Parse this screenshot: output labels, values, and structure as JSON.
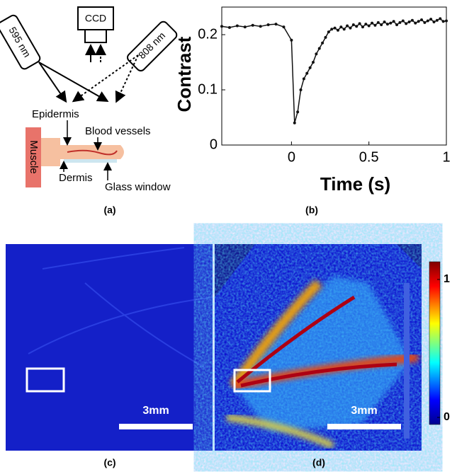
{
  "diagram": {
    "source_left": "595 nm",
    "camera": "CCD",
    "source_right": "808 nm",
    "epidermis": "Epidermis",
    "vessels": "Blood vessels",
    "muscle": "Muscle",
    "dermis": "Dermis",
    "window": "Glass window",
    "label": "(a)"
  },
  "chart_data": {
    "type": "line",
    "label": "(b)",
    "xlabel": "Time (s)",
    "ylabel": "Contrast",
    "xlim": [
      -0.45,
      1
    ],
    "xticks": [
      0,
      0.5,
      1
    ],
    "ylim": [
      0,
      0.25
    ],
    "yticks": [
      0,
      0.1,
      0.2
    ],
    "color": "#111111",
    "x": [
      -0.45,
      -0.4,
      -0.35,
      -0.3,
      -0.25,
      -0.2,
      -0.15,
      -0.1,
      -0.05,
      0,
      0.02,
      0.04,
      0.06,
      0.08,
      0.1,
      0.12,
      0.14,
      0.16,
      0.18,
      0.2,
      0.22,
      0.24,
      0.26,
      0.28,
      0.3,
      0.32,
      0.34,
      0.36,
      0.38,
      0.4,
      0.42,
      0.44,
      0.46,
      0.48,
      0.5,
      0.52,
      0.54,
      0.56,
      0.58,
      0.6,
      0.62,
      0.64,
      0.66,
      0.68,
      0.7,
      0.72,
      0.74,
      0.76,
      0.78,
      0.8,
      0.82,
      0.84,
      0.86,
      0.88,
      0.9,
      0.92,
      0.94,
      0.96,
      0.98,
      1
    ],
    "values": [
      0.215,
      0.213,
      0.216,
      0.214,
      0.217,
      0.215,
      0.218,
      0.219,
      0.214,
      0.19,
      0.04,
      0.06,
      0.1,
      0.12,
      0.13,
      0.14,
      0.15,
      0.165,
      0.175,
      0.185,
      0.195,
      0.205,
      0.21,
      0.212,
      0.208,
      0.214,
      0.21,
      0.216,
      0.212,
      0.218,
      0.215,
      0.22,
      0.214,
      0.219,
      0.216,
      0.221,
      0.217,
      0.222,
      0.218,
      0.223,
      0.219,
      0.221,
      0.224,
      0.218,
      0.222,
      0.225,
      0.22,
      0.223,
      0.226,
      0.221,
      0.224,
      0.227,
      0.222,
      0.225,
      0.228,
      0.223,
      0.226,
      0.229,
      0.224,
      0.225
    ]
  },
  "images": {
    "left": {
      "scale_bar": "3mm",
      "label": "(c)"
    },
    "right": {
      "scale_bar": "3mm",
      "label": "(d)"
    },
    "colorbar": {
      "ticks": [
        0,
        1
      ]
    }
  }
}
